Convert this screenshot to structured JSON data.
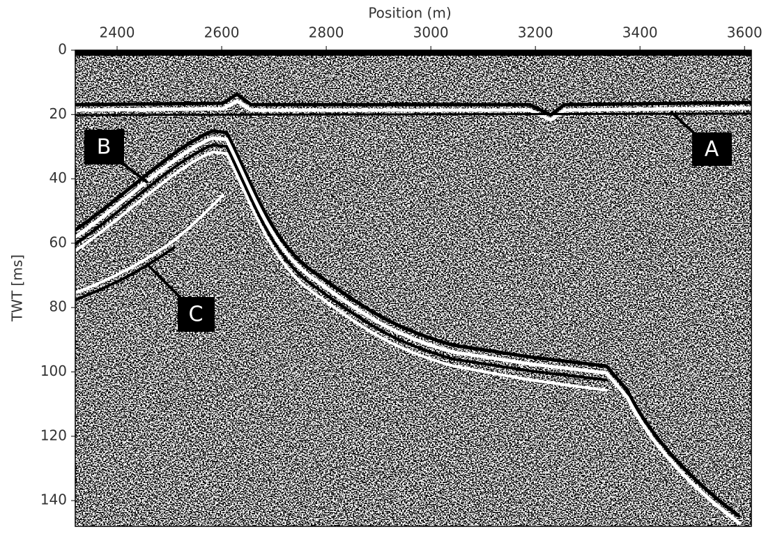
{
  "chart_data": {
    "type": "image",
    "xlabel": "Position (m)",
    "ylabel": "TWT [ms]",
    "xlim": [
      2320,
      3613
    ],
    "ylim": [
      0,
      148
    ],
    "xticks": [
      2400,
      2600,
      2800,
      3000,
      3200,
      3400,
      3600
    ],
    "yticks": [
      0,
      20,
      40,
      60,
      80,
      100,
      120,
      140
    ],
    "annotations": [
      {
        "text": "A"
      },
      {
        "text": "B"
      },
      {
        "text": "C"
      }
    ]
  }
}
